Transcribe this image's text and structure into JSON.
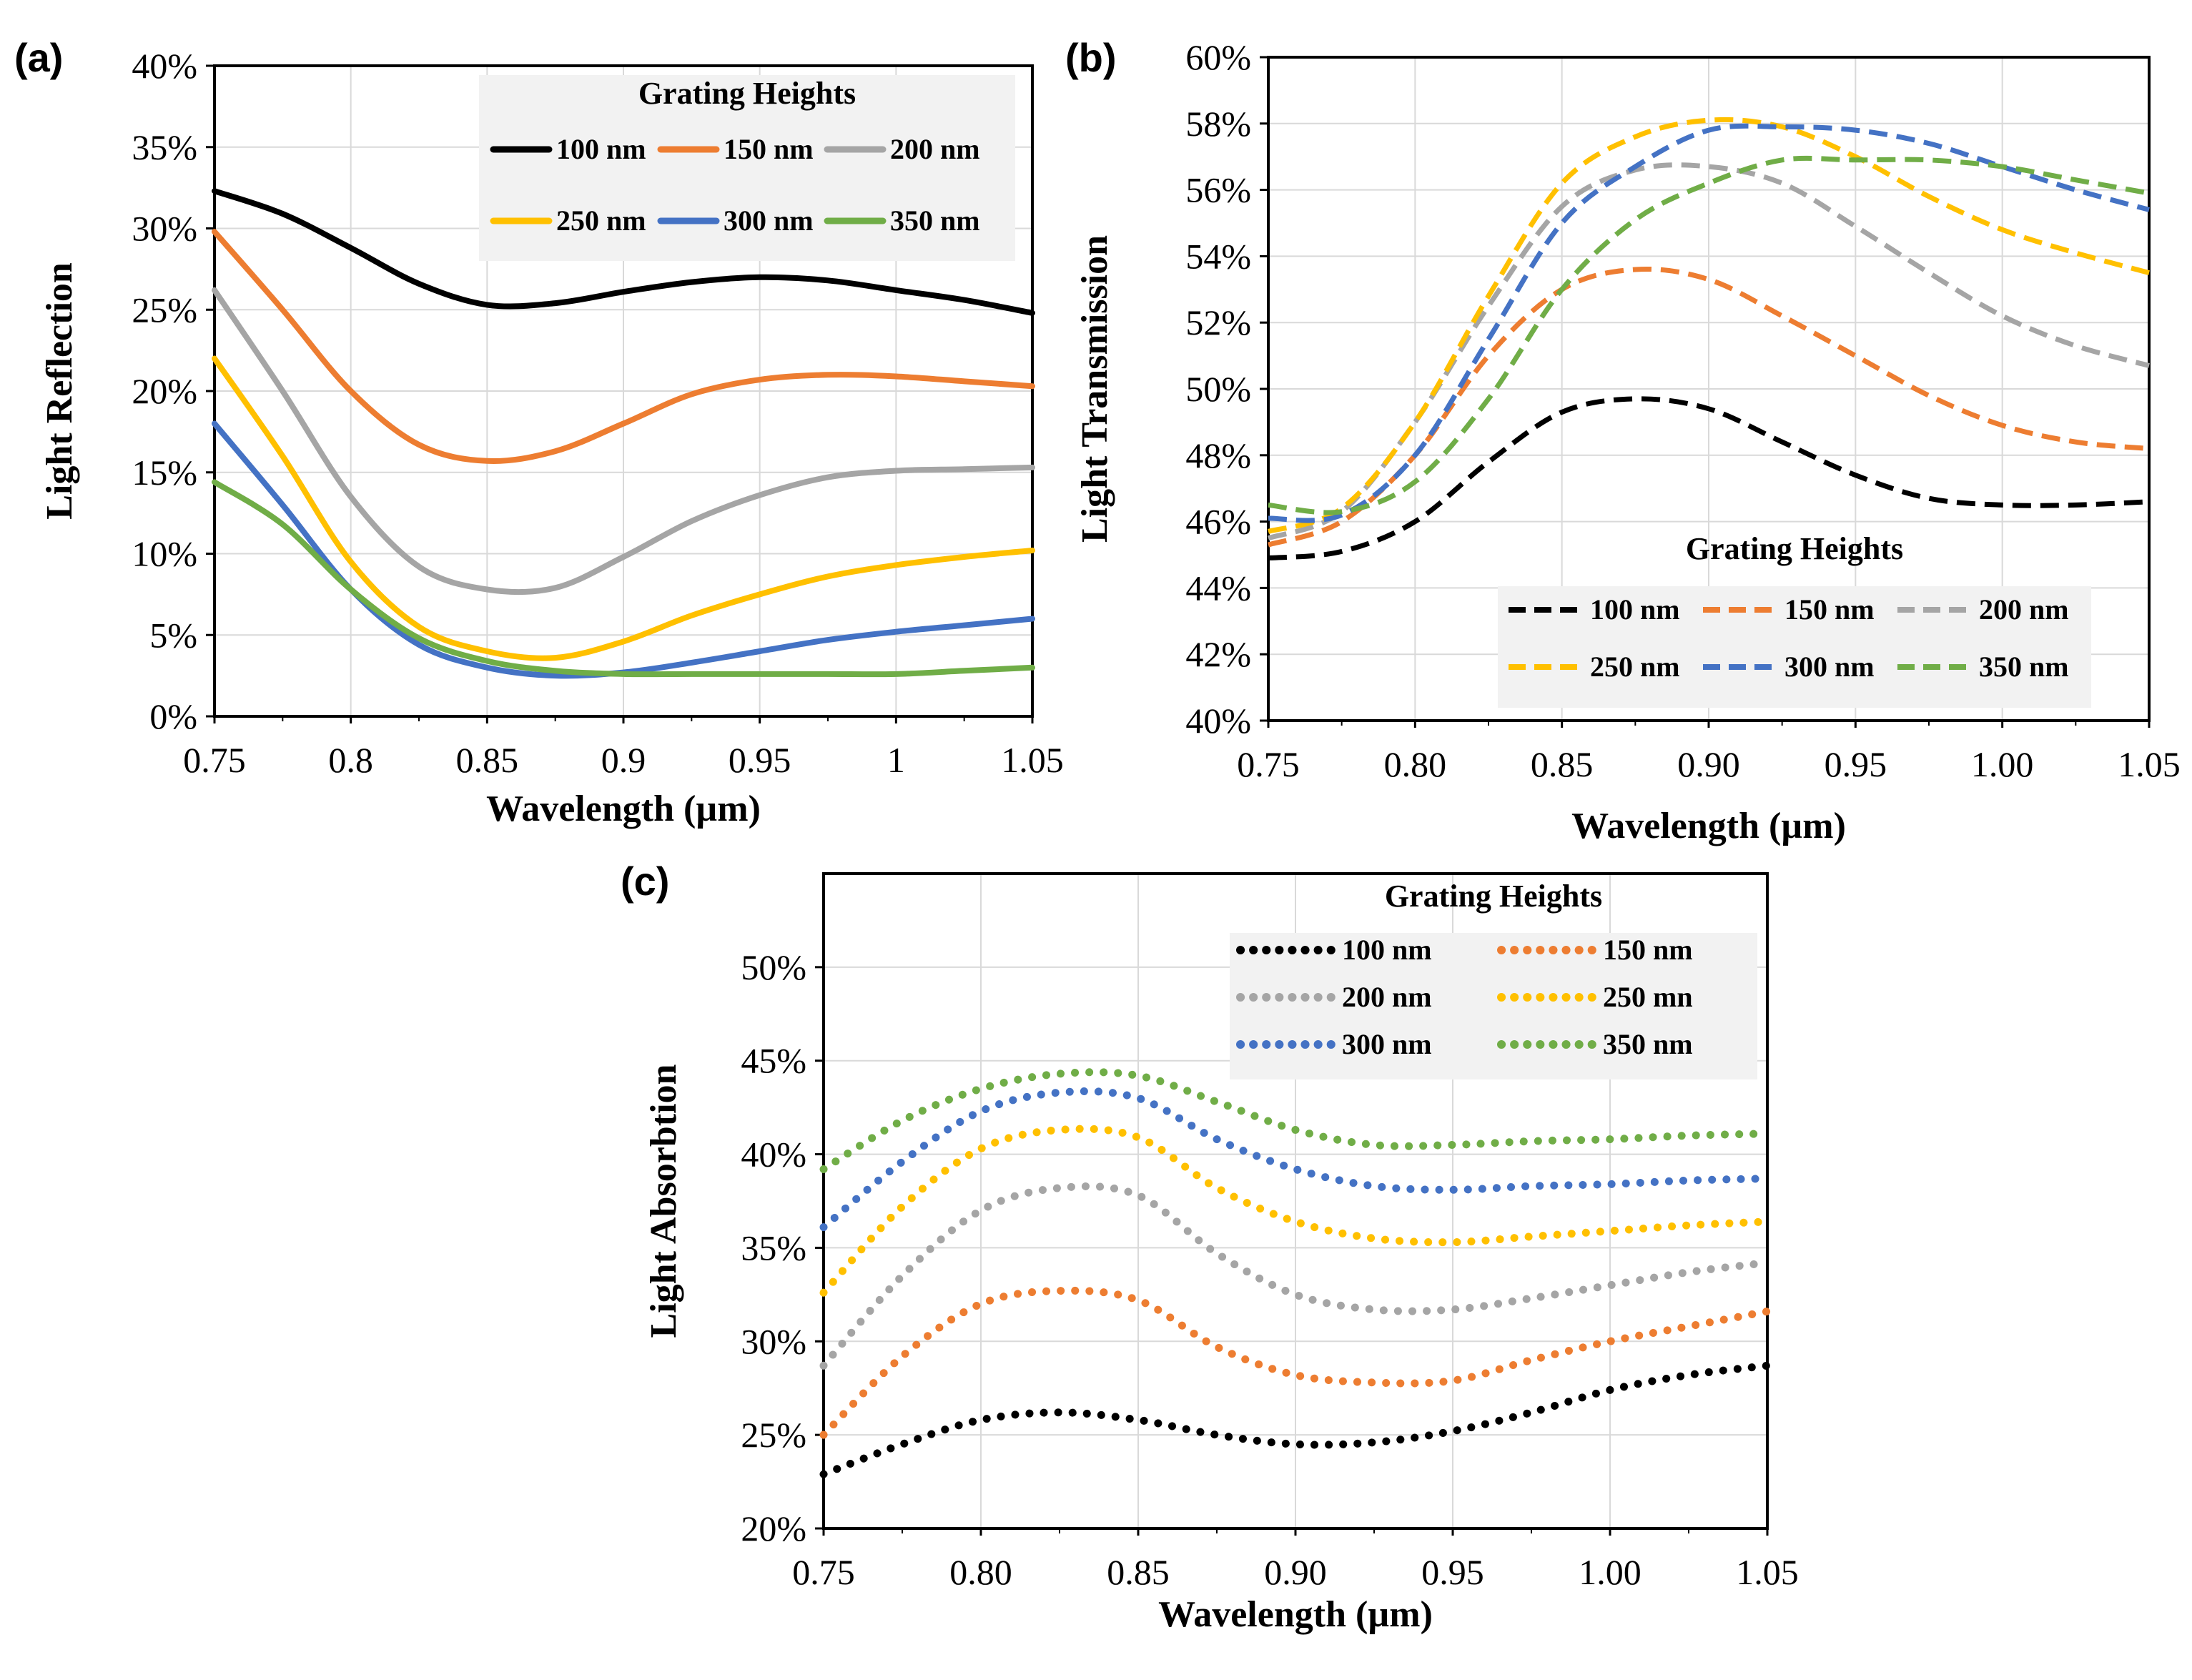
{
  "chart_data": [
    {
      "panel": "(a)",
      "type": "line",
      "line_style": "solid",
      "xlabel": "Wavelength (µm)",
      "ylabel": "Light Reflection",
      "xlim": [
        0.75,
        1.05
      ],
      "ylim": [
        0,
        0.4
      ],
      "xticks": [
        "0.75",
        "0.8",
        "0.85",
        "0.9",
        "0.95",
        "1",
        "1.05"
      ],
      "yticks": [
        "0%",
        "5%",
        "10%",
        "15%",
        "20%",
        "25%",
        "30%",
        "35%",
        "40%"
      ],
      "legend_title": "Grating Heights",
      "legend_position": "top-right",
      "x": [
        0.75,
        0.775,
        0.8,
        0.825,
        0.85,
        0.875,
        0.9,
        0.925,
        0.95,
        0.975,
        1.0,
        1.025,
        1.05
      ],
      "series": [
        {
          "name": "100 nm",
          "color": "#000000",
          "values": [
            0.323,
            0.309,
            0.288,
            0.266,
            0.253,
            0.254,
            0.261,
            0.267,
            0.27,
            0.268,
            0.262,
            0.256,
            0.248
          ]
        },
        {
          "name": "150 nm",
          "color": "#ED7D31",
          "values": [
            0.298,
            0.25,
            0.2,
            0.167,
            0.157,
            0.163,
            0.18,
            0.198,
            0.207,
            0.21,
            0.209,
            0.206,
            0.203
          ]
        },
        {
          "name": "200 nm",
          "color": "#A5A5A5",
          "values": [
            0.262,
            0.2,
            0.135,
            0.092,
            0.078,
            0.079,
            0.098,
            0.12,
            0.136,
            0.147,
            0.151,
            0.152,
            0.153
          ]
        },
        {
          "name": "250 nm",
          "color": "#FFC000",
          "values": [
            0.22,
            0.16,
            0.095,
            0.055,
            0.04,
            0.036,
            0.046,
            0.062,
            0.075,
            0.086,
            0.093,
            0.098,
            0.102
          ]
        },
        {
          "name": "300 nm",
          "color": "#4472C4",
          "values": [
            0.18,
            0.13,
            0.078,
            0.044,
            0.03,
            0.025,
            0.027,
            0.033,
            0.04,
            0.047,
            0.052,
            0.056,
            0.06
          ]
        },
        {
          "name": "350 nm",
          "color": "#70AD47",
          "values": [
            0.144,
            0.118,
            0.078,
            0.048,
            0.034,
            0.028,
            0.026,
            0.026,
            0.026,
            0.026,
            0.026,
            0.028,
            0.03
          ]
        }
      ]
    },
    {
      "panel": "(b)",
      "type": "line",
      "line_style": "dashed",
      "xlabel": "Wavelength (µm)",
      "ylabel": "Light Transmission",
      "xlim": [
        0.75,
        1.05
      ],
      "ylim": [
        0.4,
        0.6
      ],
      "xticks": [
        "0.75",
        "0.80",
        "0.85",
        "0.90",
        "0.95",
        "1.00",
        "1.05"
      ],
      "yticks": [
        "40%",
        "42%",
        "44%",
        "46%",
        "48%",
        "50%",
        "52%",
        "54%",
        "56%",
        "58%",
        "60%"
      ],
      "legend_title": "Grating Heights",
      "legend_position": "bottom-right",
      "x": [
        0.75,
        0.775,
        0.8,
        0.825,
        0.85,
        0.875,
        0.9,
        0.925,
        0.95,
        0.975,
        1.0,
        1.025,
        1.05
      ],
      "series": [
        {
          "name": "100 nm",
          "color": "#000000",
          "values": [
            0.449,
            0.451,
            0.46,
            0.478,
            0.493,
            0.497,
            0.494,
            0.484,
            0.474,
            0.467,
            0.465,
            0.465,
            0.466
          ]
        },
        {
          "name": "150 nm",
          "color": "#ED7D31",
          "values": [
            0.453,
            0.46,
            0.48,
            0.51,
            0.53,
            0.536,
            0.533,
            0.522,
            0.51,
            0.498,
            0.489,
            0.484,
            0.482
          ]
        },
        {
          "name": "200 nm",
          "color": "#A5A5A5",
          "values": [
            0.455,
            0.463,
            0.49,
            0.525,
            0.555,
            0.566,
            0.567,
            0.562,
            0.549,
            0.535,
            0.522,
            0.513,
            0.507
          ]
        },
        {
          "name": "250 nm",
          "color": "#FFC000",
          "values": [
            0.457,
            0.464,
            0.49,
            0.528,
            0.562,
            0.576,
            0.581,
            0.579,
            0.57,
            0.558,
            0.548,
            0.541,
            0.535
          ]
        },
        {
          "name": "300 nm",
          "color": "#4472C4",
          "values": [
            0.461,
            0.462,
            0.48,
            0.515,
            0.55,
            0.567,
            0.578,
            0.579,
            0.578,
            0.574,
            0.567,
            0.56,
            0.554
          ]
        },
        {
          "name": "350 nm",
          "color": "#70AD47",
          "values": [
            0.465,
            0.463,
            0.472,
            0.497,
            0.53,
            0.551,
            0.562,
            0.569,
            0.569,
            0.569,
            0.567,
            0.563,
            0.559
          ]
        }
      ]
    },
    {
      "panel": "(c)",
      "type": "line",
      "line_style": "dotted",
      "xlabel": "Wavelength (µm)",
      "ylabel": "Light Absorbtion",
      "xlim": [
        0.75,
        1.05
      ],
      "ylim": [
        0.2,
        0.55
      ],
      "xticks": [
        "0.75",
        "0.80",
        "0.85",
        "0.90",
        "0.95",
        "1.00",
        "1.05"
      ],
      "yticks": [
        "20%",
        "25%",
        "30%",
        "35%",
        "40%",
        "45%",
        "50%"
      ],
      "legend_title": "Grating Heights",
      "legend_position": "top-right",
      "x": [
        0.75,
        0.775,
        0.8,
        0.825,
        0.85,
        0.875,
        0.9,
        0.925,
        0.95,
        0.975,
        1.0,
        1.025,
        1.05
      ],
      "series": [
        {
          "name": "100 nm",
          "color": "#000000",
          "values": [
            0.229,
            0.245,
            0.258,
            0.262,
            0.258,
            0.25,
            0.245,
            0.246,
            0.252,
            0.262,
            0.274,
            0.282,
            0.287
          ]
        },
        {
          "name": "150 nm",
          "color": "#ED7D31",
          "values": [
            0.25,
            0.292,
            0.32,
            0.327,
            0.322,
            0.297,
            0.282,
            0.278,
            0.279,
            0.29,
            0.3,
            0.308,
            0.316
          ]
        },
        {
          "name": "200 nm",
          "color": "#A5A5A5",
          "values": [
            0.287,
            0.335,
            0.37,
            0.382,
            0.378,
            0.347,
            0.325,
            0.317,
            0.317,
            0.323,
            0.33,
            0.337,
            0.342
          ]
        },
        {
          "name": "250 nm",
          "color": "#FFC000",
          "values": [
            0.326,
            0.372,
            0.403,
            0.413,
            0.409,
            0.382,
            0.364,
            0.355,
            0.353,
            0.356,
            0.359,
            0.362,
            0.364
          ]
        },
        {
          "name": "300 nm",
          "color": "#4472C4",
          "values": [
            0.361,
            0.396,
            0.423,
            0.433,
            0.43,
            0.408,
            0.392,
            0.383,
            0.381,
            0.383,
            0.384,
            0.386,
            0.387
          ]
        },
        {
          "name": "350 nm",
          "color": "#70AD47",
          "values": [
            0.392,
            0.418,
            0.435,
            0.443,
            0.442,
            0.428,
            0.413,
            0.405,
            0.405,
            0.407,
            0.408,
            0.41,
            0.411
          ]
        }
      ]
    }
  ],
  "legend_c_extra_label": "250 mn"
}
